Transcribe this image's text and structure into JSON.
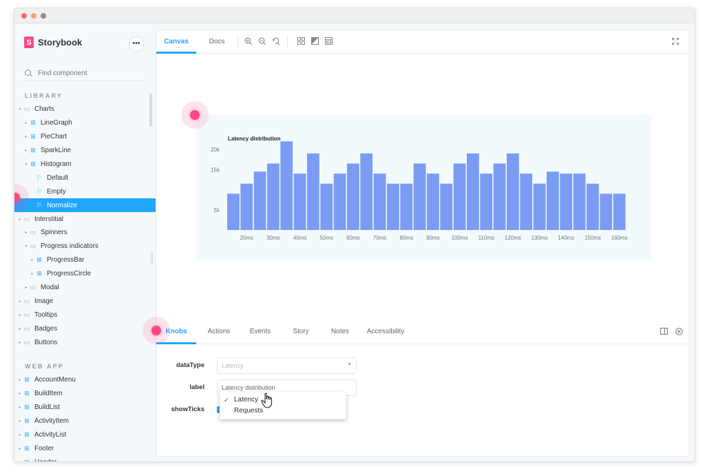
{
  "app": {
    "brand_name": "Storybook",
    "menu_label": "•••"
  },
  "search": {
    "placeholder": "Find component"
  },
  "sidebar": {
    "library_label": "LIBRARY",
    "webapp_label": "WEB APP",
    "library_items": [
      {
        "label": "Charts",
        "icon": "folder-icon",
        "level": 0,
        "expanded": true
      },
      {
        "label": "LineGraph",
        "icon": "component-icon",
        "level": 1,
        "expanded": false
      },
      {
        "label": "PieChart",
        "icon": "component-icon",
        "level": 1,
        "expanded": false
      },
      {
        "label": "SparkLine",
        "icon": "component-icon",
        "level": 1,
        "expanded": false
      },
      {
        "label": "Histogram",
        "icon": "component-icon",
        "level": 1,
        "expanded": true
      },
      {
        "label": "Default",
        "icon": "story-icon",
        "level": 2,
        "leaf": true
      },
      {
        "label": "Empty",
        "icon": "story-icon",
        "level": 2,
        "leaf": true
      },
      {
        "label": "Normalize",
        "icon": "story-icon",
        "level": 2,
        "leaf": true,
        "selected": true
      },
      {
        "label": "Interstitial",
        "icon": "folder-icon",
        "level": 0,
        "expanded": false
      },
      {
        "label": "Spinners",
        "icon": "folder-icon",
        "level": 1,
        "expanded": false
      },
      {
        "label": "Progress indicators",
        "icon": "folder-icon",
        "level": 1,
        "expanded": true
      },
      {
        "label": "ProgressBar",
        "icon": "component-icon",
        "level": 2,
        "expanded": false
      },
      {
        "label": "ProgressCircle",
        "icon": "component-icon",
        "level": 2,
        "expanded": false
      },
      {
        "label": "Modal",
        "icon": "folder-icon",
        "level": 1,
        "expanded": false
      },
      {
        "label": "Image",
        "icon": "folder-icon",
        "level": 0,
        "expanded": false
      },
      {
        "label": "Tooltips",
        "icon": "folder-icon",
        "level": 0,
        "expanded": false
      },
      {
        "label": "Badges",
        "icon": "folder-icon",
        "level": 0,
        "expanded": false
      },
      {
        "label": "Buttons",
        "icon": "folder-icon",
        "level": 0,
        "expanded": false
      }
    ],
    "webapp_items": [
      {
        "label": "AccountMenu",
        "icon": "component-icon"
      },
      {
        "label": "BuildItem",
        "icon": "component-icon"
      },
      {
        "label": "BuildList",
        "icon": "component-icon"
      },
      {
        "label": "ActivityItem",
        "icon": "component-icon"
      },
      {
        "label": "ActivityList",
        "icon": "component-icon"
      },
      {
        "label": "Footer",
        "icon": "component-icon"
      },
      {
        "label": "Header",
        "icon": "component-icon"
      }
    ]
  },
  "toolbar": {
    "tab_canvas": "Canvas",
    "tab_docs": "Docs"
  },
  "addons": {
    "tabs": [
      "Knobs",
      "Actions",
      "Events",
      "Story",
      "Notes",
      "Accessibility"
    ],
    "active_tab": "Knobs"
  },
  "knobs": {
    "datatype_label": "dataType",
    "datatype_value": "Latency",
    "label_label": "label",
    "label_value": "Latency distribution",
    "showticks_label": "showTicks",
    "showticks_checked": true,
    "dropdown_options": [
      "Latency",
      "Requests"
    ],
    "dropdown_selected": "Latency"
  },
  "colors": {
    "accent": "#1ea7fd",
    "brand": "#ff4785",
    "bar": "#7b9cf4",
    "chart_bg": "#f2fafd"
  },
  "chart_data": {
    "type": "bar",
    "title": "Latency distribution",
    "xlabel": "",
    "ylabel": "",
    "ylim": [
      0,
      25000
    ],
    "yticks": [
      {
        "value": 5000,
        "label": "5k"
      },
      {
        "value": 15000,
        "label": "15k"
      },
      {
        "value": 20000,
        "label": "20k"
      }
    ],
    "xtick_labels": [
      "20ms",
      "30ms",
      "40ms",
      "50ms",
      "60ms",
      "70ms",
      "80ms",
      "90ms",
      "100ms",
      "110ms",
      "120ms",
      "130ms",
      "140ms",
      "150ms",
      "160ms"
    ],
    "bins": [
      "15ms",
      "20ms",
      "25ms",
      "30ms",
      "35ms",
      "40ms",
      "45ms",
      "50ms",
      "55ms",
      "60ms",
      "65ms",
      "70ms",
      "75ms",
      "80ms",
      "85ms",
      "90ms",
      "95ms",
      "100ms",
      "105ms",
      "110ms",
      "115ms",
      "120ms",
      "125ms",
      "130ms",
      "135ms",
      "140ms",
      "145ms",
      "150ms",
      "155ms",
      "160ms"
    ],
    "values": [
      9000,
      11500,
      14500,
      16500,
      22000,
      14000,
      19000,
      11500,
      14000,
      16500,
      19000,
      14000,
      11500,
      11500,
      16500,
      14000,
      11500,
      16500,
      19000,
      14000,
      16500,
      19000,
      14000,
      11500,
      14500,
      14000,
      14000,
      11500,
      9000,
      9000
    ]
  }
}
